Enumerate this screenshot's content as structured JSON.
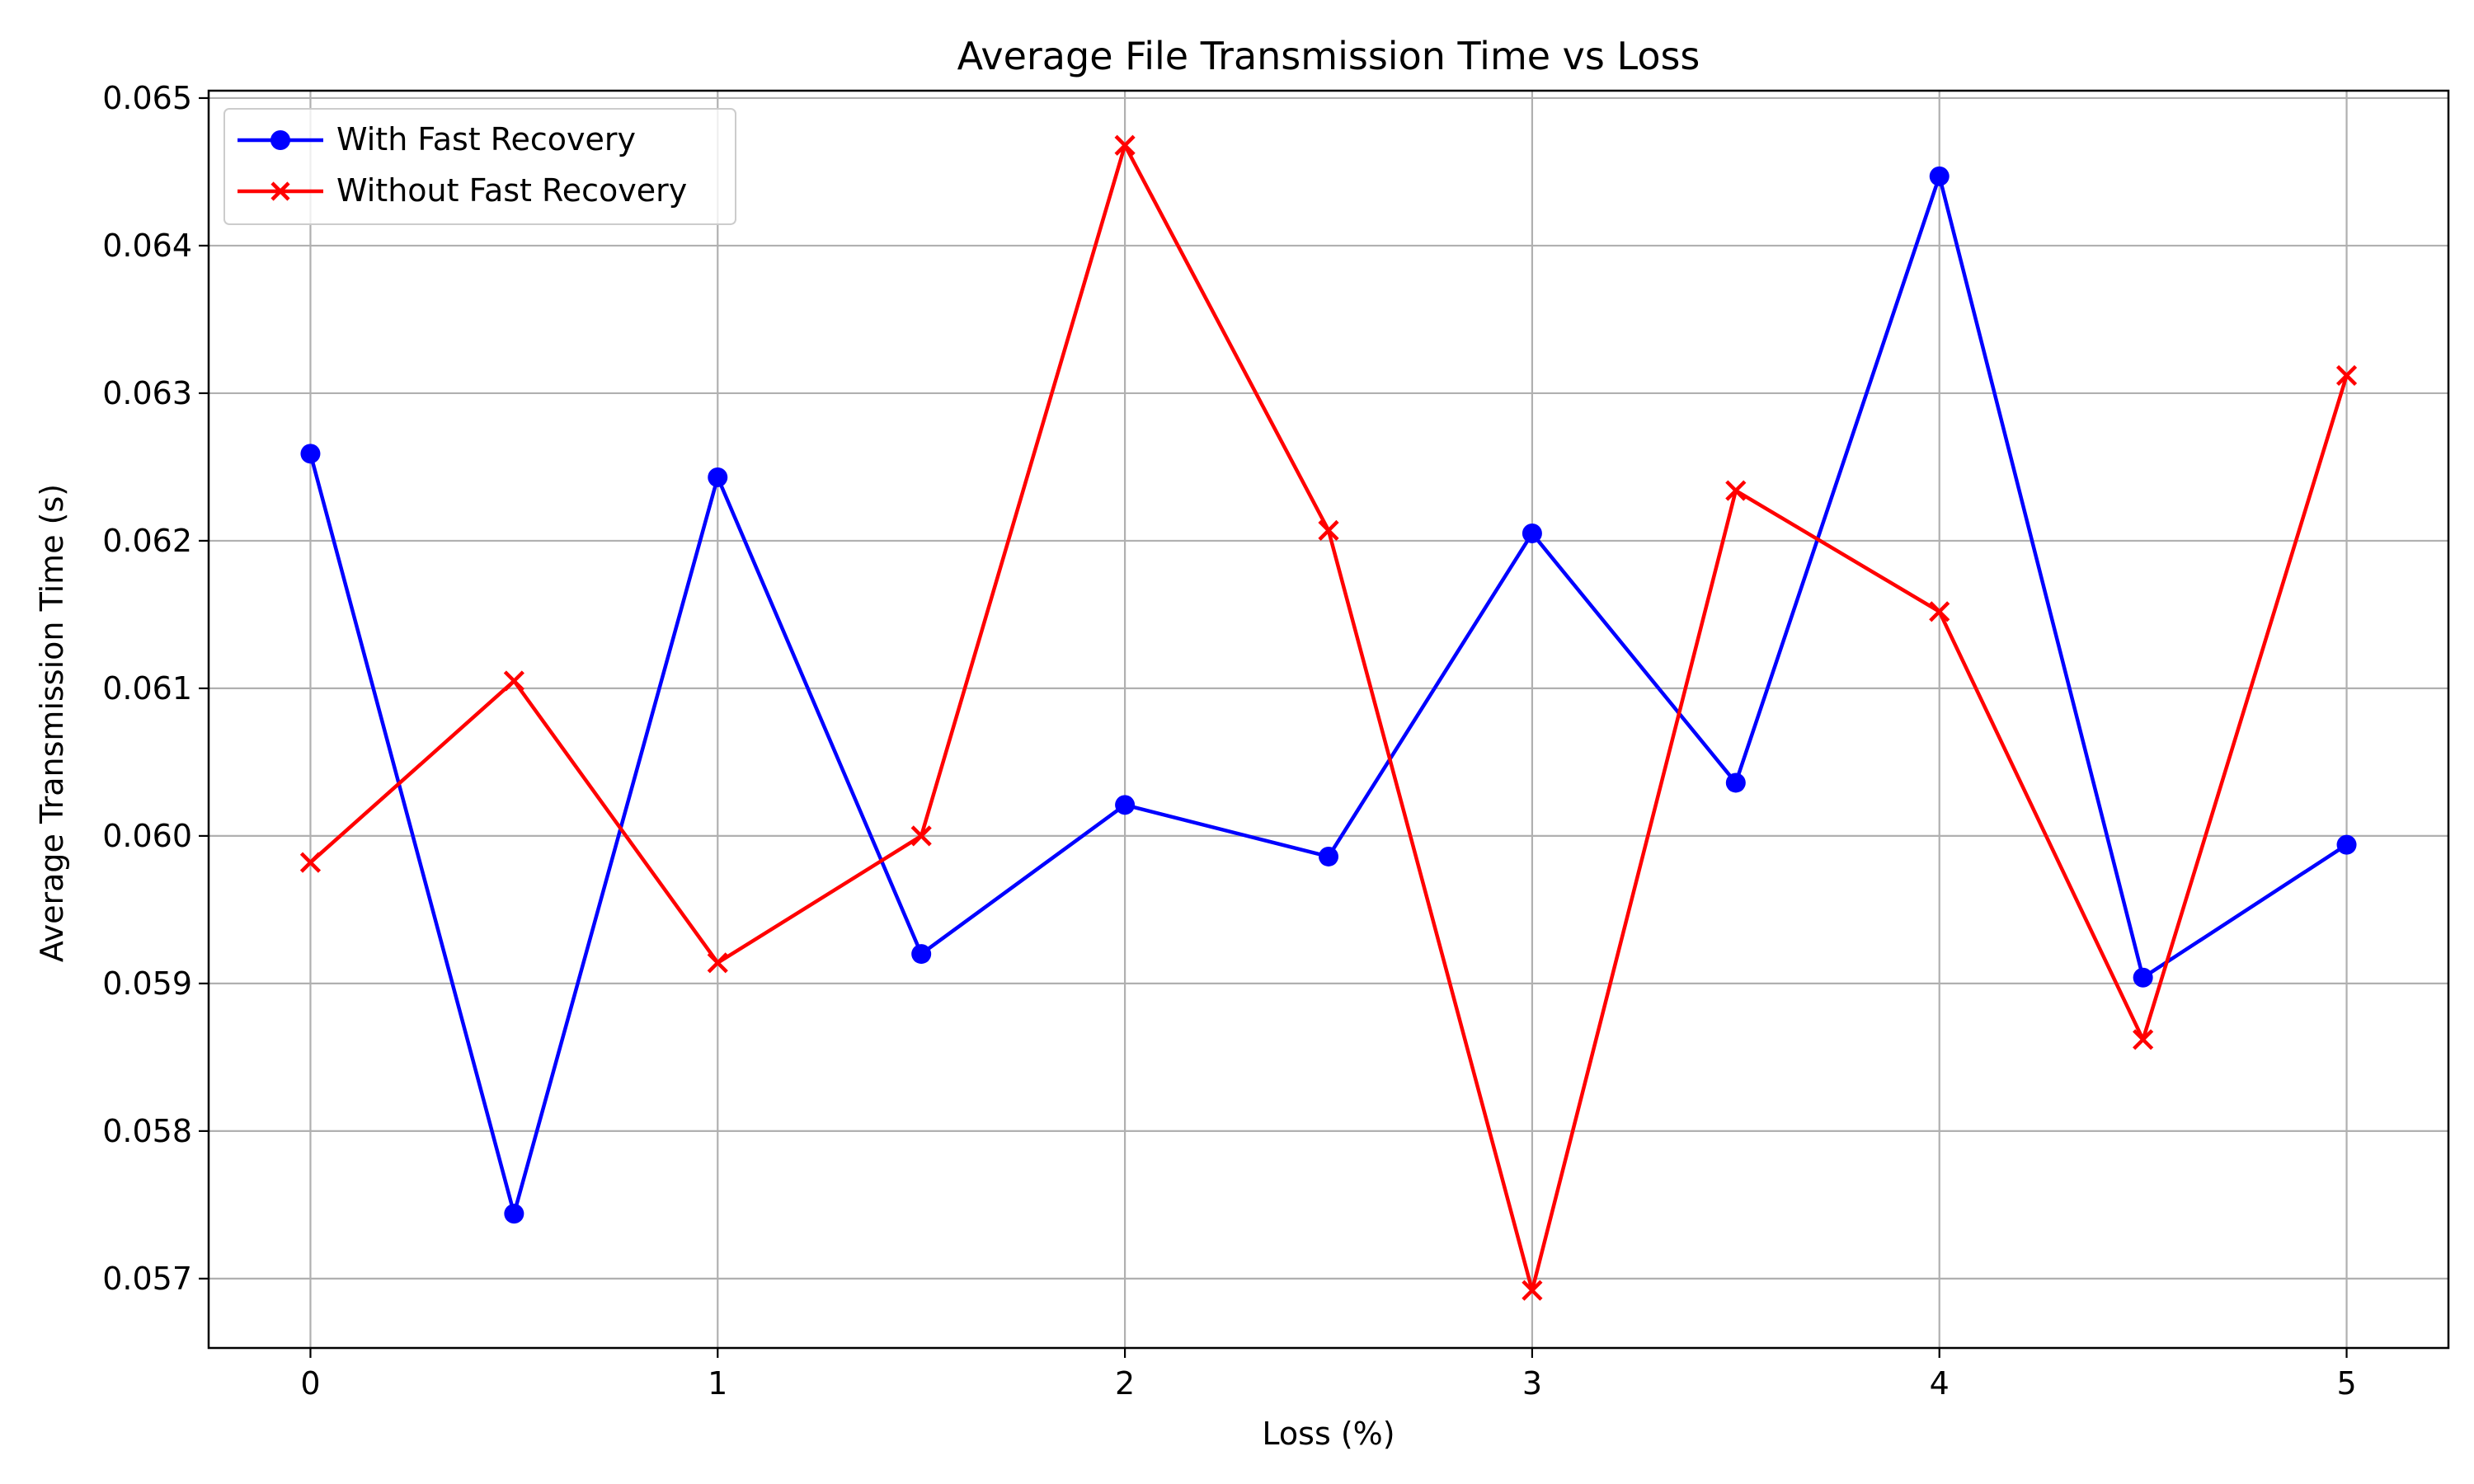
{
  "chart_data": {
    "type": "line",
    "title": "Average File Transmission Time vs Loss",
    "xlabel": "Loss (%)",
    "ylabel": "Average Transmission Time (s)",
    "x": [
      0,
      0.5,
      1,
      1.5,
      2,
      2.5,
      3,
      3.5,
      4,
      4.5,
      5
    ],
    "xlim": [
      -0.25,
      5.25
    ],
    "ylim": [
      0.05653,
      0.06505
    ],
    "xticks": [
      0,
      1,
      2,
      3,
      4,
      5
    ],
    "xtick_labels": [
      "0",
      "1",
      "2",
      "3",
      "4",
      "5"
    ],
    "yticks": [
      0.057,
      0.058,
      0.059,
      0.06,
      0.061,
      0.062,
      0.063,
      0.064,
      0.065
    ],
    "ytick_labels": [
      "0.057",
      "0.058",
      "0.059",
      "0.060",
      "0.061",
      "0.062",
      "0.063",
      "0.064",
      "0.065"
    ],
    "grid": true,
    "legend_position": "top-left",
    "series": [
      {
        "name": "With Fast Recovery",
        "color": "#0000ff",
        "marker": "circle",
        "values": [
          0.06259,
          0.05744,
          0.06243,
          0.0592,
          0.06021,
          0.05986,
          0.06205,
          0.06036,
          0.06447,
          0.05904,
          0.05994
        ]
      },
      {
        "name": "Without Fast Recovery",
        "color": "#ff0000",
        "marker": "x",
        "values": [
          0.05982,
          0.06105,
          0.05914,
          0.06,
          0.06468,
          0.06207,
          0.05692,
          0.06234,
          0.06152,
          0.05862,
          0.06312
        ]
      }
    ]
  }
}
